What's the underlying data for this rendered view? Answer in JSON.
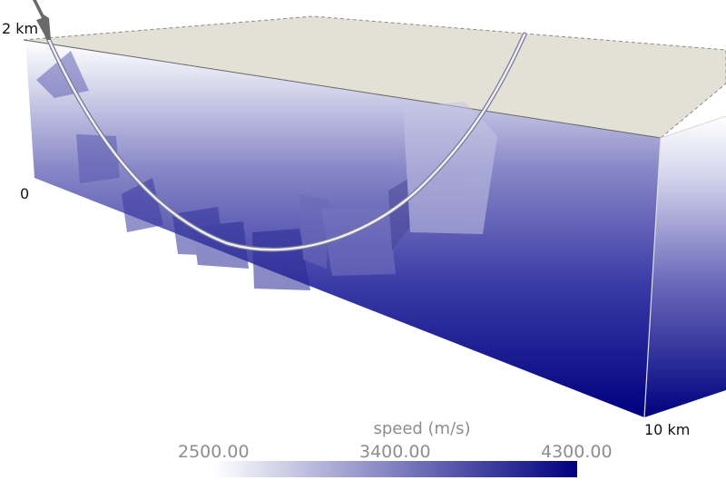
{
  "axis_labels": {
    "depth_top": "2 km",
    "depth_zero": "0",
    "length_end": "10 km"
  },
  "colorbar": {
    "title": "speed (m/s)",
    "ticks": [
      "2500.00",
      "3400.00",
      "4300.00"
    ],
    "color_low": "#ffffff",
    "color_high": "#000080"
  },
  "colors": {
    "surface": "#e3e0d6",
    "volume_light": "#ffffff",
    "volume_dark": "#00007f",
    "well_path": "#d8d8e8",
    "wellhead": "#6a6a6a"
  }
}
